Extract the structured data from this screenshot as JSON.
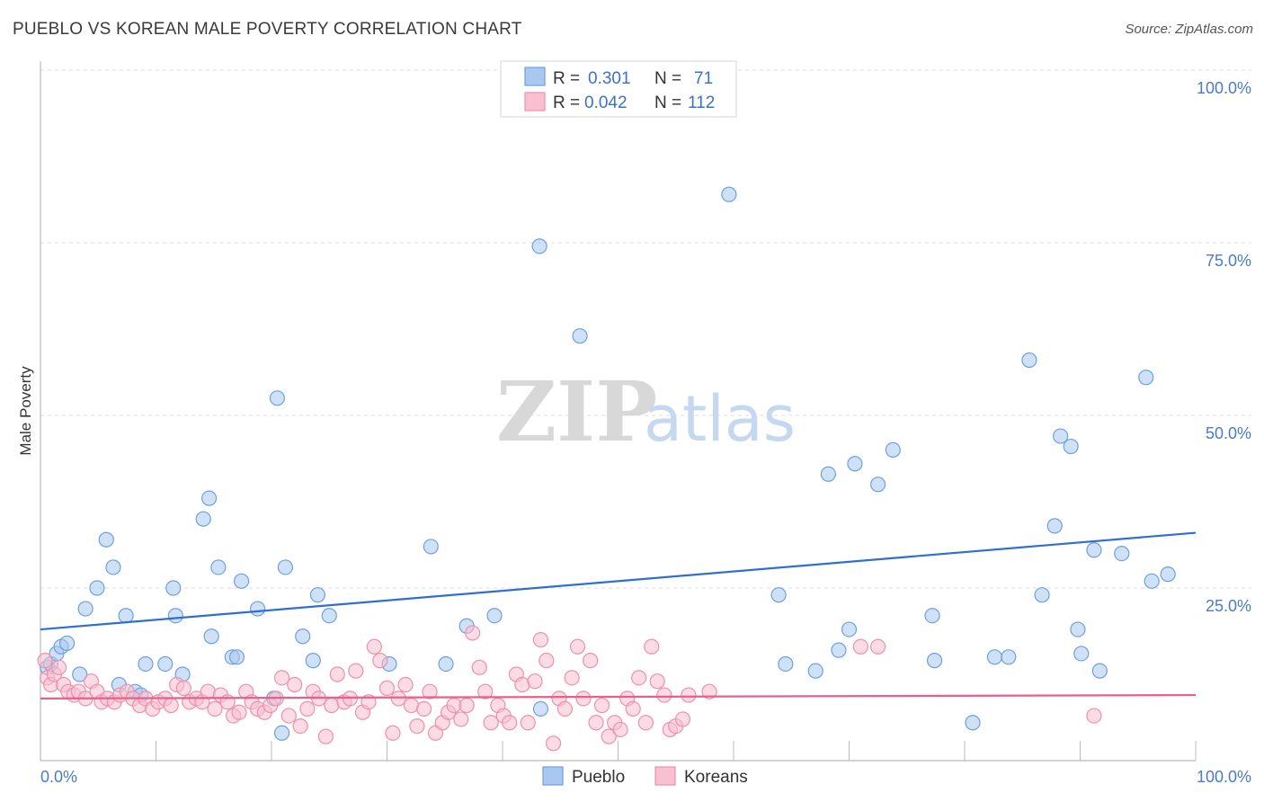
{
  "header": {
    "title": "PUEBLO VS KOREAN MALE POVERTY CORRELATION CHART",
    "source": "Source: ZipAtlas.com"
  },
  "watermark": {
    "zip": "ZIP",
    "atlas": "atlas"
  },
  "stats_legend": {
    "rows": [
      {
        "r_label": "R =",
        "r_value": "0.301",
        "n_label": "N =",
        "n_value": "71",
        "color": "#a8c8f0",
        "stroke": "#6fa0de"
      },
      {
        "r_label": "R =",
        "r_value": "0.042",
        "n_label": "N =",
        "n_value": "112",
        "color": "#f8c0d0",
        "stroke": "#ee90aa"
      }
    ]
  },
  "colors": {
    "pueblo_fill": "#a8c8f0",
    "pueblo_stroke": "#6fa0de",
    "pueblo_line": "#2f6fcf",
    "koreans_fill": "#f8c0d0",
    "koreans_stroke": "#ee90aa",
    "koreans_line": "#e8608a",
    "tick_text": "#4a7bc8"
  },
  "chart_data": {
    "type": "scatter",
    "title": "PUEBLO VS KOREAN MALE POVERTY CORRELATION CHART",
    "xlabel": "",
    "ylabel": "Male Poverty",
    "xlim": [
      0,
      100
    ],
    "ylim": [
      0,
      100
    ],
    "x_tick_labels": [
      "0.0%",
      "100.0%"
    ],
    "y_tick_labels": [
      "25.0%",
      "50.0%",
      "75.0%",
      "100.0%"
    ],
    "grid": true,
    "legend_position": "bottom-center",
    "series": [
      {
        "name": "Pueblo",
        "r": 0.301,
        "n": 71,
        "trend": {
          "y_at_x0": 19.0,
          "y_at_x100": 33.0
        },
        "points": [
          [
            0.6,
            13.5
          ],
          [
            0.9,
            14
          ],
          [
            1.4,
            15.5
          ],
          [
            1.8,
            16.5
          ],
          [
            2.3,
            17
          ],
          [
            3.4,
            12.5
          ],
          [
            3.9,
            22
          ],
          [
            4.9,
            25
          ],
          [
            5.7,
            32
          ],
          [
            6.3,
            28
          ],
          [
            6.8,
            11
          ],
          [
            7.4,
            21
          ],
          [
            8.2,
            10
          ],
          [
            8.7,
            9.5
          ],
          [
            9.1,
            14
          ],
          [
            10.8,
            14
          ],
          [
            11.5,
            25
          ],
          [
            11.7,
            21
          ],
          [
            12.3,
            12.5
          ],
          [
            14.1,
            35
          ],
          [
            14.6,
            38
          ],
          [
            14.8,
            18
          ],
          [
            15.4,
            28
          ],
          [
            16.6,
            15
          ],
          [
            17.0,
            15
          ],
          [
            17.4,
            26
          ],
          [
            18.8,
            22
          ],
          [
            20.2,
            9
          ],
          [
            20.9,
            4
          ],
          [
            20.5,
            52.5
          ],
          [
            21.2,
            28
          ],
          [
            22.7,
            18
          ],
          [
            23.6,
            14.5
          ],
          [
            24.0,
            24
          ],
          [
            25.0,
            21
          ],
          [
            30.2,
            14
          ],
          [
            33.8,
            31
          ],
          [
            35.1,
            14
          ],
          [
            36.9,
            19.5
          ],
          [
            39.3,
            21
          ],
          [
            43.3,
            7.5
          ],
          [
            46.7,
            61.5
          ],
          [
            43.2,
            74.5
          ],
          [
            59.6,
            82
          ],
          [
            63.9,
            24
          ],
          [
            64.5,
            14
          ],
          [
            67.1,
            13
          ],
          [
            68.2,
            41.5
          ],
          [
            69.1,
            16
          ],
          [
            70.0,
            19
          ],
          [
            70.5,
            43
          ],
          [
            72.5,
            40
          ],
          [
            73.8,
            45
          ],
          [
            77.2,
            21
          ],
          [
            77.4,
            14.5
          ],
          [
            80.7,
            5.5
          ],
          [
            82.6,
            15
          ],
          [
            83.8,
            15
          ],
          [
            85.6,
            58
          ],
          [
            86.7,
            24
          ],
          [
            87.8,
            34
          ],
          [
            88.3,
            47
          ],
          [
            89.2,
            45.5
          ],
          [
            89.8,
            19
          ],
          [
            90.1,
            15.5
          ],
          [
            91.2,
            30.5
          ],
          [
            91.7,
            13
          ],
          [
            93.6,
            30
          ],
          [
            95.7,
            55.5
          ],
          [
            96.2,
            26
          ],
          [
            97.6,
            27
          ]
        ]
      },
      {
        "name": "Koreans",
        "r": 0.042,
        "n": 112,
        "trend": {
          "y_at_x0": 9.0,
          "y_at_x100": 9.5
        },
        "points": [
          [
            0.4,
            14.5
          ],
          [
            0.6,
            12
          ],
          [
            0.9,
            11
          ],
          [
            1.2,
            12.5
          ],
          [
            1.6,
            13.5
          ],
          [
            2.0,
            11
          ],
          [
            2.4,
            10
          ],
          [
            2.9,
            9.5
          ],
          [
            3.3,
            10
          ],
          [
            3.9,
            9
          ],
          [
            4.4,
            11.5
          ],
          [
            4.9,
            10
          ],
          [
            5.3,
            8.5
          ],
          [
            5.8,
            9
          ],
          [
            6.4,
            8.5
          ],
          [
            6.9,
            9.5
          ],
          [
            7.5,
            10
          ],
          [
            8.0,
            9
          ],
          [
            8.6,
            8
          ],
          [
            9.1,
            9
          ],
          [
            9.7,
            7.5
          ],
          [
            10.2,
            8.5
          ],
          [
            10.8,
            9
          ],
          [
            11.3,
            8
          ],
          [
            11.8,
            11
          ],
          [
            12.4,
            10.5
          ],
          [
            12.9,
            8.5
          ],
          [
            13.5,
            9
          ],
          [
            14.0,
            8.5
          ],
          [
            14.5,
            10
          ],
          [
            15.1,
            7.5
          ],
          [
            15.6,
            9.5
          ],
          [
            16.2,
            8.5
          ],
          [
            16.7,
            6.5
          ],
          [
            17.2,
            7
          ],
          [
            17.8,
            10
          ],
          [
            18.3,
            8.5
          ],
          [
            18.8,
            7.5
          ],
          [
            19.4,
            7
          ],
          [
            19.9,
            8
          ],
          [
            20.4,
            9
          ],
          [
            20.9,
            12
          ],
          [
            21.5,
            6.5
          ],
          [
            22.0,
            11
          ],
          [
            22.5,
            5
          ],
          [
            23.1,
            7.5
          ],
          [
            23.6,
            10
          ],
          [
            24.1,
            9
          ],
          [
            24.7,
            3.5
          ],
          [
            25.2,
            8
          ],
          [
            25.7,
            12.5
          ],
          [
            26.3,
            8.5
          ],
          [
            26.8,
            9
          ],
          [
            27.3,
            13
          ],
          [
            27.9,
            7
          ],
          [
            28.4,
            8.5
          ],
          [
            28.9,
            16.5
          ],
          [
            29.4,
            14.5
          ],
          [
            30.0,
            10.5
          ],
          [
            30.5,
            4
          ],
          [
            31.0,
            9
          ],
          [
            31.6,
            11
          ],
          [
            32.1,
            8
          ],
          [
            32.6,
            5
          ],
          [
            33.2,
            7.5
          ],
          [
            33.7,
            10
          ],
          [
            34.2,
            4
          ],
          [
            34.8,
            5.5
          ],
          [
            35.3,
            7
          ],
          [
            35.8,
            8
          ],
          [
            36.4,
            6
          ],
          [
            36.9,
            8
          ],
          [
            37.4,
            18.5
          ],
          [
            38.0,
            13.5
          ],
          [
            38.5,
            10
          ],
          [
            39.0,
            5.5
          ],
          [
            39.6,
            8
          ],
          [
            40.1,
            6.5
          ],
          [
            40.6,
            5.5
          ],
          [
            41.2,
            12.5
          ],
          [
            41.7,
            11
          ],
          [
            42.2,
            5.5
          ],
          [
            42.8,
            11.5
          ],
          [
            43.3,
            17.5
          ],
          [
            43.8,
            14.5
          ],
          [
            44.4,
            2.5
          ],
          [
            44.9,
            9
          ],
          [
            45.4,
            7.5
          ],
          [
            46.0,
            12
          ],
          [
            46.5,
            16.5
          ],
          [
            47.0,
            9
          ],
          [
            47.6,
            14.5
          ],
          [
            48.1,
            5.5
          ],
          [
            48.6,
            8
          ],
          [
            49.2,
            3.5
          ],
          [
            49.7,
            5.5
          ],
          [
            50.2,
            4.5
          ],
          [
            50.8,
            9
          ],
          [
            51.3,
            7.5
          ],
          [
            51.8,
            12
          ],
          [
            52.4,
            5.5
          ],
          [
            52.9,
            16.5
          ],
          [
            53.4,
            11.5
          ],
          [
            54.0,
            9.5
          ],
          [
            54.5,
            4.5
          ],
          [
            55.0,
            5
          ],
          [
            55.6,
            6
          ],
          [
            56.1,
            9.5
          ],
          [
            57.9,
            10
          ],
          [
            71.0,
            16.5
          ],
          [
            72.5,
            16.5
          ],
          [
            91.2,
            6.5
          ]
        ]
      }
    ]
  },
  "bottom_legend": {
    "items": [
      {
        "label": "Pueblo",
        "fill": "#a8c8f0",
        "stroke": "#6fa0de"
      },
      {
        "label": "Koreans",
        "fill": "#f8c0d0",
        "stroke": "#ee90aa"
      }
    ]
  }
}
